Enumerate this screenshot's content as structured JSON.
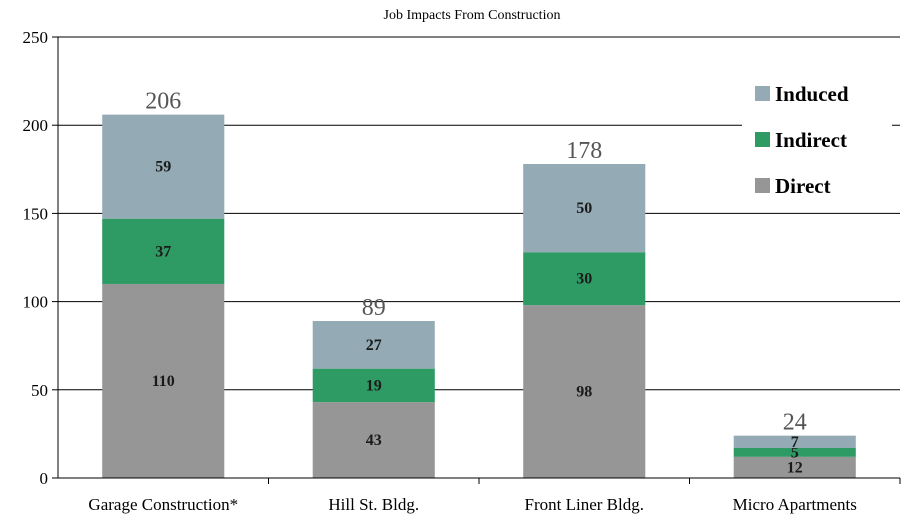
{
  "chart_data": {
    "type": "bar",
    "stacked": true,
    "title": "Job Impacts From Construction",
    "xlabel": "",
    "ylabel": "",
    "categories": [
      "Garage Construction*",
      "Hill St. Bldg.",
      "Front Liner Bldg.",
      "Micro Apartments"
    ],
    "series": [
      {
        "name": "Direct",
        "values": [
          110,
          43,
          98,
          12
        ],
        "color": "#969696"
      },
      {
        "name": "Indirect",
        "values": [
          37,
          19,
          30,
          5
        ],
        "color": "#2e9a64"
      },
      {
        "name": "Induced",
        "values": [
          59,
          27,
          50,
          7
        ],
        "color": "#94aab5"
      }
    ],
    "totals": [
      206,
      89,
      178,
      24
    ],
    "ylim": [
      0,
      250
    ],
    "yticks": [
      0,
      50,
      100,
      150,
      200,
      250
    ],
    "grid": true,
    "legend": {
      "placement": "top-right",
      "order": [
        "Induced",
        "Indirect",
        "Direct"
      ]
    }
  }
}
